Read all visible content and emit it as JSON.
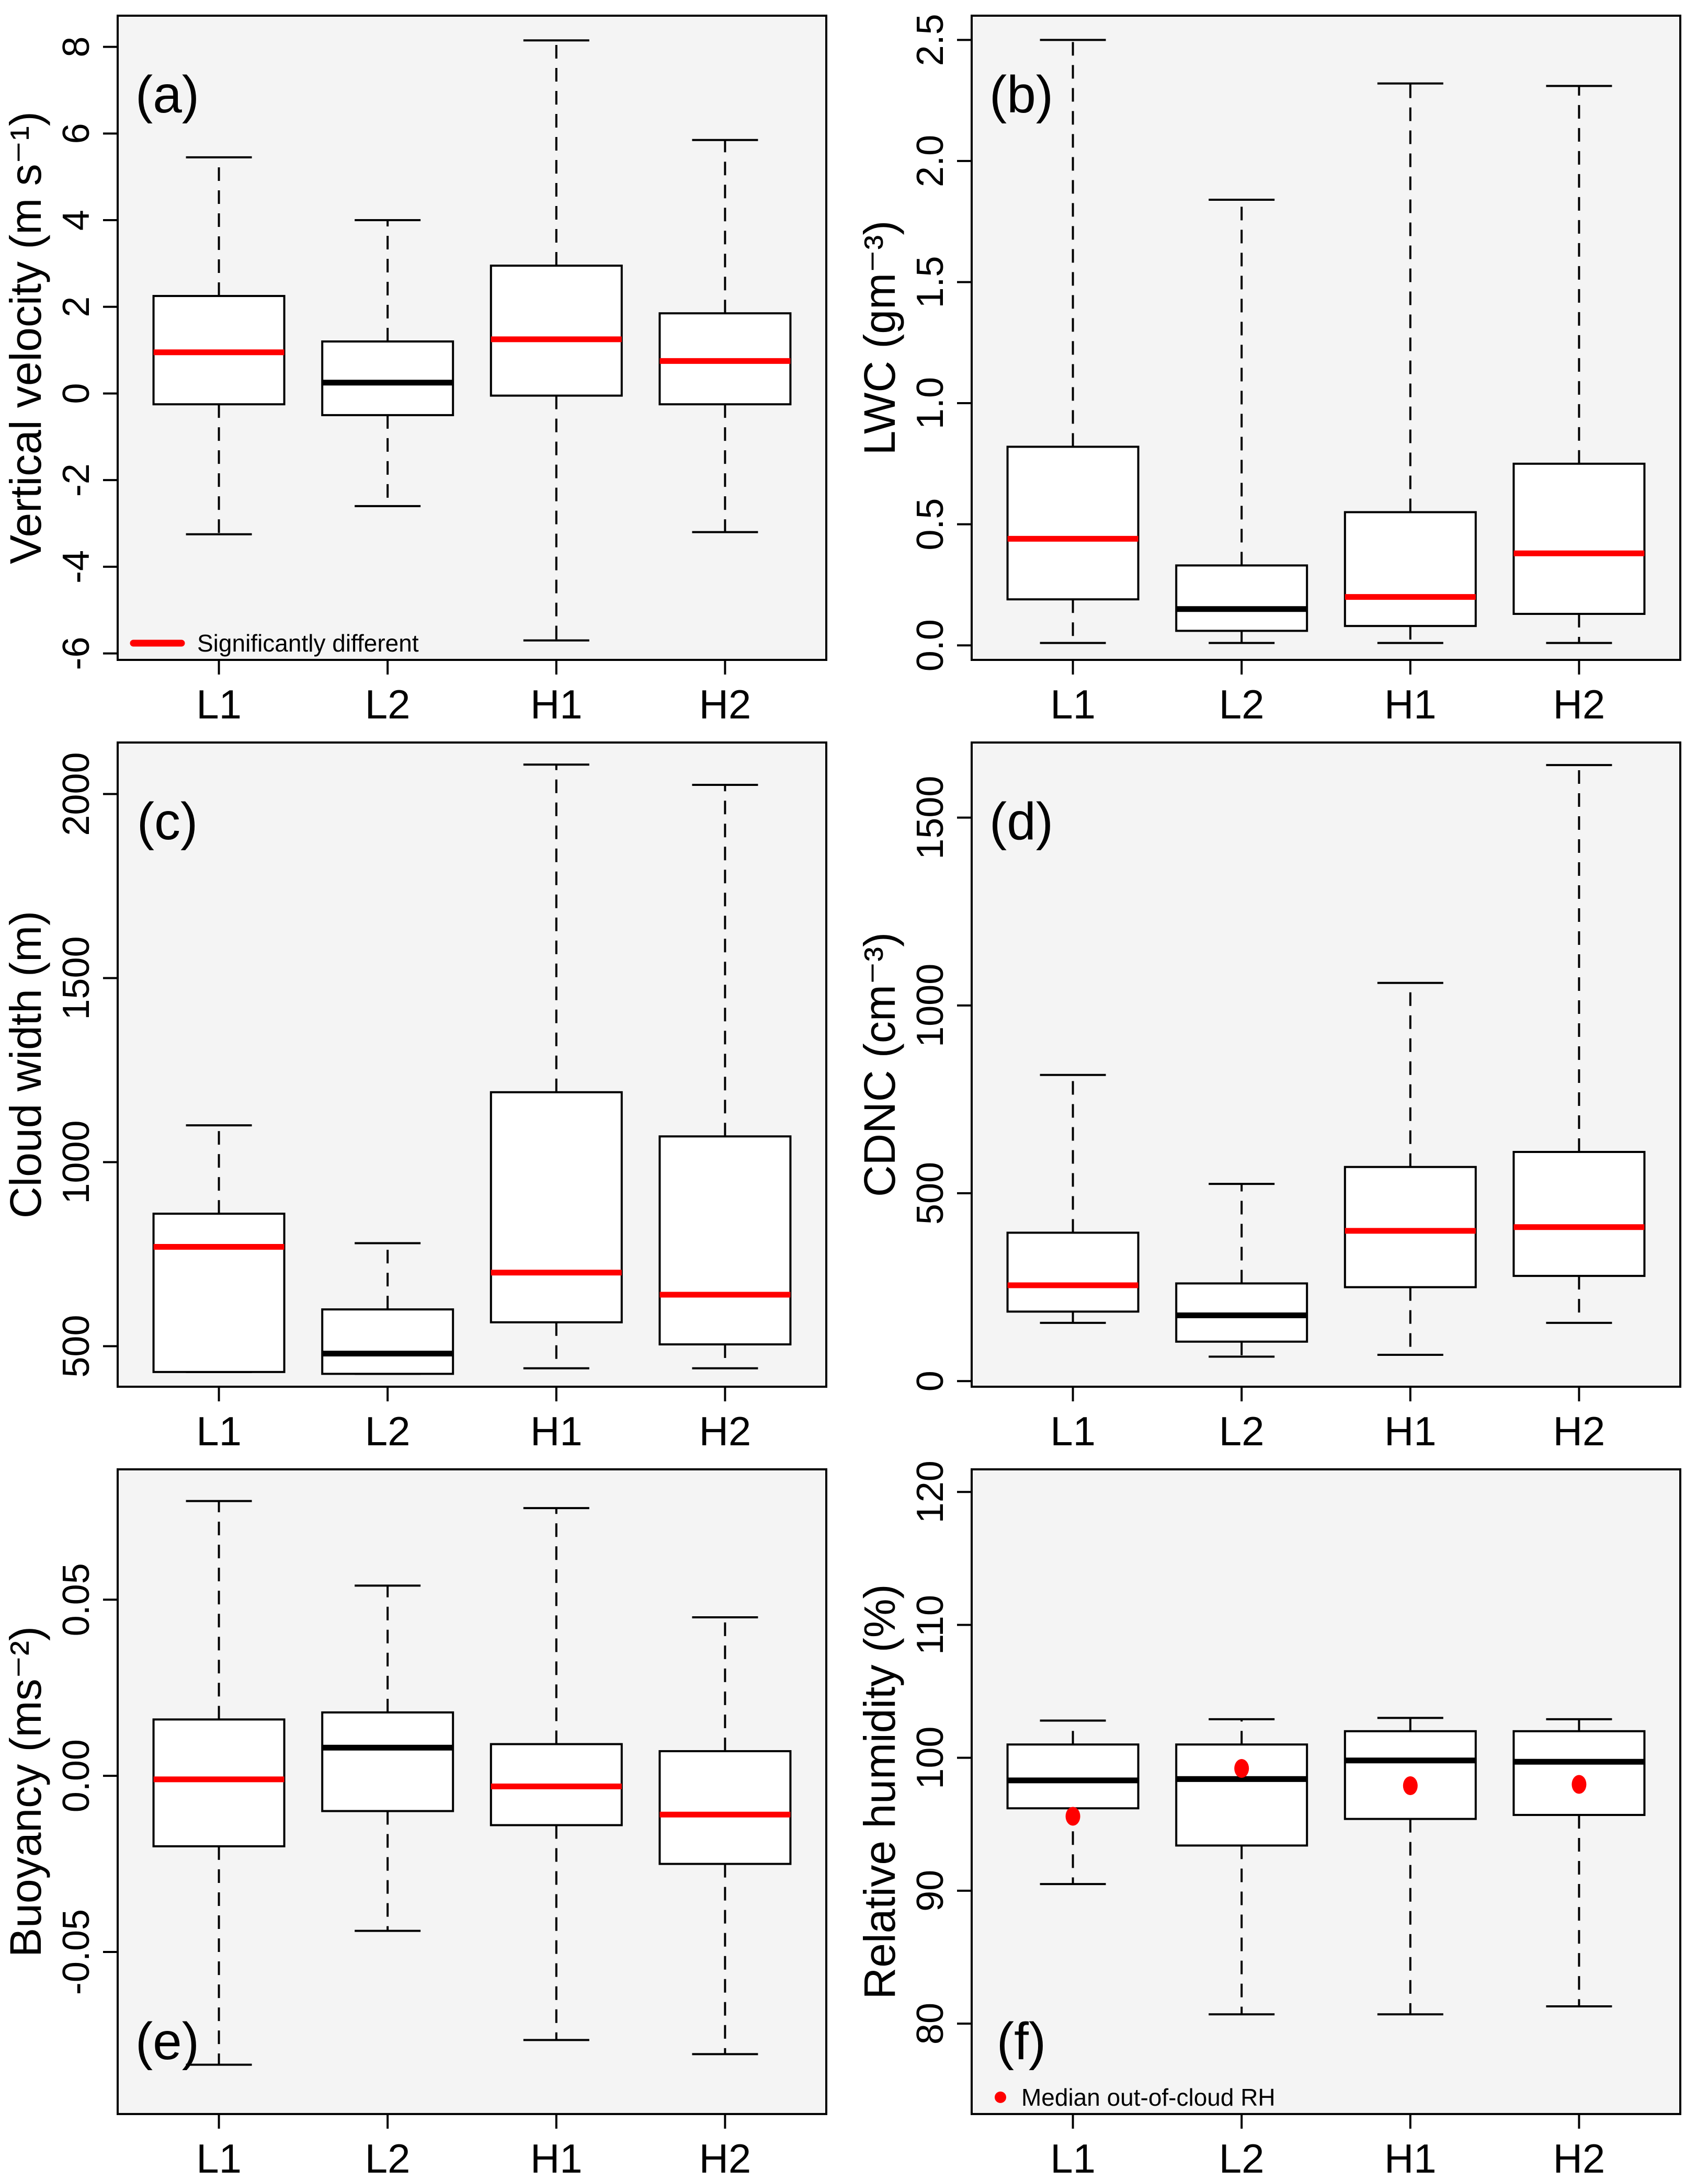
{
  "figure": {
    "background": "#ffffff",
    "panel_background": "#f4f4f4",
    "frame_color": "#000000",
    "box_fill": "#ffffff",
    "box_border_color": "#000000",
    "whisker_color": "#000000",
    "median_color": "#000000",
    "significant_median_color": "#ff0000",
    "point_color": "#ff0000"
  },
  "categories": [
    "L1",
    "L2",
    "H1",
    "H2"
  ],
  "chart_data": [
    {
      "type": "box",
      "panel_label": "(a)",
      "panel_label_position": "top-left",
      "ylabel": "Vertical velocity (m s⁻¹)",
      "ylim": [
        -6.15,
        8.72
      ],
      "yticks": [
        -6,
        -4,
        -2,
        0,
        2,
        4,
        6,
        8
      ],
      "ytick_labels": [
        "-6",
        "-4",
        "-2",
        "0",
        "2",
        "4",
        "6",
        "8"
      ],
      "categories": [
        "L1",
        "L2",
        "H1",
        "H2"
      ],
      "series": [
        {
          "category": "L1",
          "whisker_low": -3.25,
          "q1": -0.25,
          "median": 0.95,
          "q3": 2.25,
          "whisker_high": 5.45,
          "significant": true
        },
        {
          "category": "L2",
          "whisker_low": -2.6,
          "q1": -0.5,
          "median": 0.25,
          "q3": 1.2,
          "whisker_high": 4.0,
          "significant": false
        },
        {
          "category": "H1",
          "whisker_low": -5.7,
          "q1": -0.05,
          "median": 1.25,
          "q3": 2.95,
          "whisker_high": 8.15,
          "significant": true
        },
        {
          "category": "H2",
          "whisker_low": -3.2,
          "q1": -0.25,
          "median": 0.75,
          "q3": 1.85,
          "whisker_high": 5.85,
          "significant": true
        }
      ],
      "legend": {
        "marker": "line",
        "color": "#ff0000",
        "label": "Significantly different"
      }
    },
    {
      "type": "box",
      "panel_label": "(b)",
      "panel_label_position": "top-left",
      "ylabel": "LWC (gm⁻³)",
      "ylim": [
        -0.06,
        2.6
      ],
      "yticks": [
        0.0,
        0.5,
        1.0,
        1.5,
        2.0,
        2.5
      ],
      "ytick_labels": [
        "0.0",
        "0.5",
        "1.0",
        "1.5",
        "2.0",
        "2.5"
      ],
      "categories": [
        "L1",
        "L2",
        "H1",
        "H2"
      ],
      "series": [
        {
          "category": "L1",
          "whisker_low": 0.01,
          "q1": 0.19,
          "median": 0.44,
          "q3": 0.82,
          "whisker_high": 2.5,
          "significant": true
        },
        {
          "category": "L2",
          "whisker_low": 0.01,
          "q1": 0.06,
          "median": 0.15,
          "q3": 0.33,
          "whisker_high": 1.84,
          "significant": false
        },
        {
          "category": "H1",
          "whisker_low": 0.01,
          "q1": 0.08,
          "median": 0.2,
          "q3": 0.55,
          "whisker_high": 2.32,
          "significant": true
        },
        {
          "category": "H2",
          "whisker_low": 0.01,
          "q1": 0.13,
          "median": 0.38,
          "q3": 0.75,
          "whisker_high": 2.31,
          "significant": true
        }
      ],
      "legend": null
    },
    {
      "type": "box",
      "panel_label": "(c)",
      "panel_label_position": "top-left",
      "ylabel": "Cloud width (m)",
      "ylim": [
        390,
        2140
      ],
      "yticks": [
        500,
        1000,
        1500,
        2000
      ],
      "ytick_labels": [
        "500",
        "1000",
        "1500",
        "2000"
      ],
      "categories": [
        "L1",
        "L2",
        "H1",
        "H2"
      ],
      "series": [
        {
          "category": "L1",
          "whisker_low": 430,
          "q1": 430,
          "median": 770,
          "q3": 860,
          "whisker_high": 1100,
          "significant": true
        },
        {
          "category": "L2",
          "whisker_low": 425,
          "q1": 425,
          "median": 480,
          "q3": 600,
          "whisker_high": 780,
          "significant": false
        },
        {
          "category": "H1",
          "whisker_low": 440,
          "q1": 565,
          "median": 700,
          "q3": 1190,
          "whisker_high": 2080,
          "significant": true
        },
        {
          "category": "H2",
          "whisker_low": 440,
          "q1": 505,
          "median": 640,
          "q3": 1070,
          "whisker_high": 2025,
          "significant": true
        }
      ],
      "legend": null
    },
    {
      "type": "box",
      "panel_label": "(d)",
      "panel_label_position": "top-left",
      "ylabel": "CDNC (cm⁻³)",
      "ylim": [
        -15,
        1700
      ],
      "yticks": [
        0,
        500,
        1000,
        1500
      ],
      "ytick_labels": [
        "0",
        "500",
        "1000",
        "1500"
      ],
      "categories": [
        "L1",
        "L2",
        "H1",
        "H2"
      ],
      "series": [
        {
          "category": "L1",
          "whisker_low": 155,
          "q1": 185,
          "median": 255,
          "q3": 395,
          "whisker_high": 815,
          "significant": true
        },
        {
          "category": "L2",
          "whisker_low": 65,
          "q1": 105,
          "median": 175,
          "q3": 260,
          "whisker_high": 525,
          "significant": false
        },
        {
          "category": "H1",
          "whisker_low": 70,
          "q1": 250,
          "median": 400,
          "q3": 570,
          "whisker_high": 1060,
          "significant": true
        },
        {
          "category": "H2",
          "whisker_low": 155,
          "q1": 280,
          "median": 410,
          "q3": 610,
          "whisker_high": 1640,
          "significant": true
        }
      ],
      "legend": null
    },
    {
      "type": "box",
      "panel_label": "(e)",
      "panel_label_position": "bottom-left",
      "ylabel": "Buoyancy (ms⁻²)",
      "ylim": [
        -0.096,
        0.087
      ],
      "yticks": [
        -0.05,
        0.0,
        0.05
      ],
      "ytick_labels": [
        "-0.05",
        "0.00",
        "0.05"
      ],
      "categories": [
        "L1",
        "L2",
        "H1",
        "H2"
      ],
      "series": [
        {
          "category": "L1",
          "whisker_low": -0.082,
          "q1": -0.02,
          "median": -0.001,
          "q3": 0.016,
          "whisker_high": 0.078,
          "significant": true
        },
        {
          "category": "L2",
          "whisker_low": -0.044,
          "q1": -0.01,
          "median": 0.008,
          "q3": 0.018,
          "whisker_high": 0.054,
          "significant": false
        },
        {
          "category": "H1",
          "whisker_low": -0.075,
          "q1": -0.014,
          "median": -0.003,
          "q3": 0.009,
          "whisker_high": 0.076,
          "significant": true
        },
        {
          "category": "H2",
          "whisker_low": -0.079,
          "q1": -0.025,
          "median": -0.011,
          "q3": 0.007,
          "whisker_high": 0.045,
          "significant": true
        }
      ],
      "legend": null
    },
    {
      "type": "box",
      "panel_label": "(f)",
      "panel_label_position": "bottom-left",
      "ylabel": "Relative humidity (%)",
      "ylim": [
        73.2,
        121.7
      ],
      "yticks": [
        80,
        90,
        100,
        110,
        120
      ],
      "ytick_labels": [
        "80",
        "90",
        "100",
        "110",
        "120"
      ],
      "categories": [
        "L1",
        "L2",
        "H1",
        "H2"
      ],
      "series": [
        {
          "category": "L1",
          "whisker_low": 90.5,
          "q1": 96.2,
          "median": 98.3,
          "q3": 101.0,
          "whisker_high": 102.8,
          "significant": false
        },
        {
          "category": "L2",
          "whisker_low": 80.7,
          "q1": 93.4,
          "median": 98.4,
          "q3": 101.0,
          "whisker_high": 102.9,
          "significant": false
        },
        {
          "category": "H1",
          "whisker_low": 80.7,
          "q1": 95.4,
          "median": 99.8,
          "q3": 102.0,
          "whisker_high": 103.0,
          "significant": false
        },
        {
          "category": "H2",
          "whisker_low": 81.3,
          "q1": 95.7,
          "median": 99.7,
          "q3": 102.0,
          "whisker_high": 102.9,
          "significant": false
        }
      ],
      "points": [
        {
          "category": "L1",
          "value": 95.6
        },
        {
          "category": "L2",
          "value": 99.2
        },
        {
          "category": "H1",
          "value": 97.9
        },
        {
          "category": "H2",
          "value": 98.0
        }
      ],
      "legend": {
        "marker": "dot",
        "color": "#ff0000",
        "label": "Median out-of-cloud RH"
      }
    }
  ]
}
